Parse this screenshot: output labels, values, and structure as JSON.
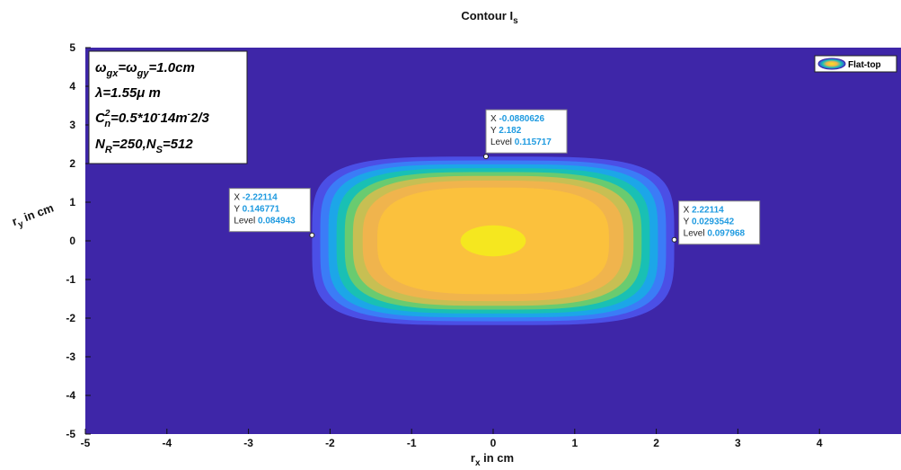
{
  "chart_data": {
    "type": "contour",
    "title": "Contour I",
    "title_sub": "s",
    "xlabel": "r",
    "xlabel_sub": "x",
    "xlabel_unit": " in cm",
    "ylabel": "r",
    "ylabel_sub": "y",
    "ylabel_unit": " in cm",
    "xlim": [
      -5,
      5
    ],
    "ylim": [
      -5,
      5
    ],
    "xticks": [
      -5,
      -4,
      -3,
      -2,
      -1,
      0,
      1,
      2,
      3,
      4
    ],
    "yticks": [
      -5,
      -4,
      -3,
      -2,
      -1,
      0,
      1,
      2,
      3,
      4,
      5
    ],
    "grid": false,
    "legend": {
      "placement": "top-right",
      "entries": [
        "Flat-top"
      ]
    },
    "background_color": "#3e26a8",
    "levels": [
      {
        "a": 2.22,
        "b": 2.18,
        "n": 4.2,
        "color": "#4b4fe6"
      },
      {
        "a": 2.12,
        "b": 2.08,
        "n": 4.0,
        "color": "#3b7cf7"
      },
      {
        "a": 2.02,
        "b": 1.98,
        "n": 3.9,
        "color": "#1ca6e8"
      },
      {
        "a": 1.92,
        "b": 1.88,
        "n": 3.7,
        "color": "#19c0b4"
      },
      {
        "a": 1.82,
        "b": 1.78,
        "n": 3.5,
        "color": "#69cb70"
      },
      {
        "a": 1.72,
        "b": 1.68,
        "n": 3.3,
        "color": "#c7bf53"
      },
      {
        "a": 1.6,
        "b": 1.56,
        "n": 3.1,
        "color": "#f0b44d"
      },
      {
        "a": 1.42,
        "b": 1.38,
        "n": 3.0,
        "color": "#fbc13d"
      },
      {
        "a": 0.4,
        "b": 0.4,
        "n": 2.0,
        "color": "#f5e71f"
      }
    ],
    "annotation_lines": [
      {
        "text": "ω",
        "sub": "gx",
        "rest": "=ω",
        "sub2": "gy",
        "rest2": "=1.0cm"
      },
      {
        "text": "λ=1.55μ m"
      },
      {
        "text": "C",
        "sup": "2",
        "sub": "n",
        "rest": "=0.5*10",
        "sup2": "-",
        "rest2": "14m",
        "sup3": "-",
        "rest3": "2/3"
      },
      {
        "text": "N",
        "sub": "R",
        "rest": "=250,N",
        "sub2": "S",
        "rest2": "=512"
      }
    ],
    "datatips": [
      {
        "x": -0.0880626,
        "y": 2.182,
        "level": 0.115717,
        "x_label": "X",
        "y_label": "Y",
        "level_label": "Level",
        "x_text": "-0.0880626",
        "y_text": "2.182",
        "level_text": "0.115717"
      },
      {
        "x": -2.22114,
        "y": 0.146771,
        "level": 0.084943,
        "x_label": "X",
        "y_label": "Y",
        "level_label": "Level",
        "x_text": "-2.22114",
        "y_text": "0.146771",
        "level_text": "0.084943"
      },
      {
        "x": 2.22114,
        "y": 0.0293542,
        "level": 0.097968,
        "x_label": "X",
        "y_label": "Y",
        "level_label": "Level",
        "x_text": "2.22114",
        "y_text": "0.0293542",
        "level_text": "0.097968"
      }
    ]
  }
}
